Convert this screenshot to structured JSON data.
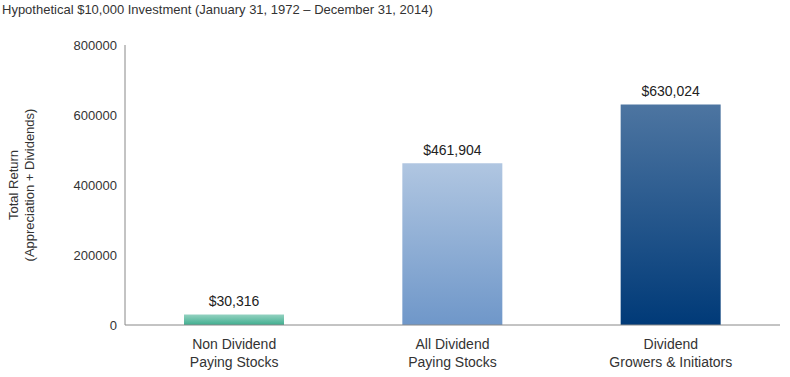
{
  "chart_data": {
    "type": "bar",
    "title": "Hypothetical $10,000 Investment (January 31, 1972 – December 31, 2014)",
    "y_label": "Total Return\n(Appreciation + Dividends)",
    "categories": [
      "Non Dividend\nPaying Stocks",
      "All Dividend\nPaying Stocks",
      "Dividend\nGrowers & Initiators"
    ],
    "values": [
      30316,
      461904,
      630024
    ],
    "value_labels": [
      "$30,316",
      "$461,904",
      "$630,024"
    ],
    "colors": [
      "#3fae8f",
      "#6f97c9",
      "#003a78"
    ],
    "ylim": [
      0,
      800000
    ],
    "yticks": [
      0,
      200000,
      400000,
      600000,
      800000
    ],
    "grid": false,
    "data_labels": true
  }
}
